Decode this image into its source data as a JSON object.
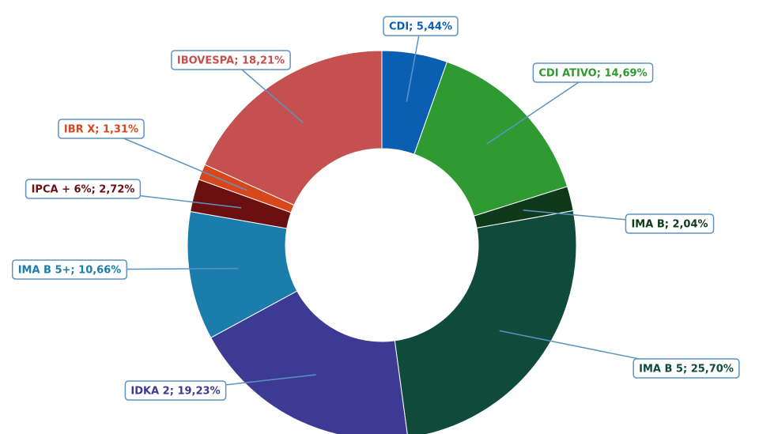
{
  "chart_data": {
    "type": "donut",
    "values": [
      5.44,
      14.69,
      2.04,
      25.7,
      19.23,
      10.66,
      2.72,
      1.31,
      18.21
    ],
    "value_labels": [
      "CDI; 5,44%",
      "CDI ATIVO; 14,69%",
      "IMA B; 2,04%",
      "IMA B 5; 25,70%",
      "IDKA 2; 19,23%",
      "IMA B 5+; 10,66%",
      "IPCA + 6%; 2,72%",
      "IBR X; 1,31%",
      "IBOVESPA; 18,21%"
    ],
    "colors": [
      "#0b5fb3",
      "#2f9a31",
      "#0e3a1b",
      "#0f4a3b",
      "#3c3a93",
      "#1a7dab",
      "#6a1010",
      "#d8471c",
      "#c4504f"
    ]
  }
}
